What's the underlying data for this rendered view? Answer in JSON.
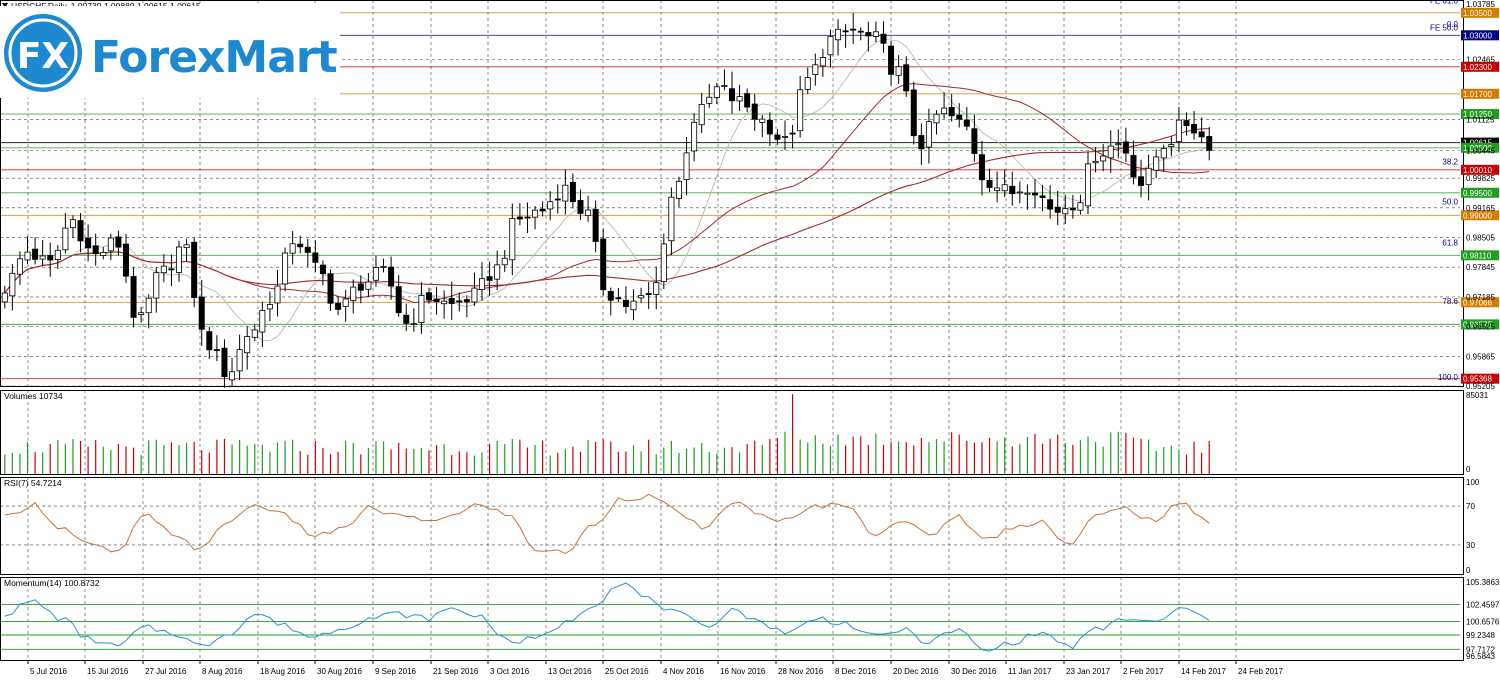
{
  "header": {
    "title": "USDCHF,Daily",
    "ohlc": "1.00730 1.00889 1.00615 1.00615"
  },
  "logo": {
    "text": "ForexMart",
    "badge": "FX",
    "brand_color": "#1e88d0"
  },
  "colors": {
    "bull": "#ffffff",
    "bear": "#000000",
    "ma_fast": "#b9b9b9",
    "ma_slow": "#a52a2a",
    "rsi_line": "#c8733a",
    "momentum_line": "#2b8fd0",
    "level_red": "#cc0000",
    "level_green": "#1f9e1f",
    "level_orange": "#d77a00",
    "level_blue": "#00008b"
  },
  "chart_data": [
    {
      "type": "candlestick",
      "pane": "price",
      "title": "USDCHF,Daily",
      "ylim": [
        0.95205,
        1.03785
      ],
      "yticks": [
        "1.03785",
        "1.02465",
        "1.01125",
        "1.00445",
        "0.99825",
        "0.99165",
        "0.98505",
        "0.97845",
        "0.97185",
        "0.96525",
        "0.95865",
        "0.95205"
      ],
      "x_labels": [
        "5 Jul 2016",
        "15 Jul 2016",
        "27 Jul 2016",
        "8 Aug 2016",
        "18 Aug 2016",
        "30 Aug 2016",
        "9 Sep 2016",
        "21 Sep 2016",
        "3 Oct 2016",
        "13 Oct 2016",
        "25 Oct 2016",
        "4 Nov 2016",
        "16 Nov 2016",
        "28 Nov 2016",
        "8 Dec 2016",
        "20 Dec 2016",
        "30 Dec 2016",
        "11 Jan 2017",
        "23 Jan 2017",
        "2 Feb 2017",
        "14 Feb 2017",
        "24 Feb 2017"
      ],
      "close_anchors": [
        0.974,
        0.982,
        0.979,
        0.989,
        0.981,
        0.984,
        0.966,
        0.977,
        0.983,
        0.962,
        0.955,
        0.964,
        0.972,
        0.985,
        0.978,
        0.969,
        0.975,
        0.977,
        0.966,
        0.972,
        0.97,
        0.972,
        0.978,
        0.989,
        0.991,
        0.996,
        0.991,
        0.973,
        0.97,
        0.972,
        0.995,
        1.012,
        1.018,
        1.015,
        1.011,
        1.006,
        1.02,
        1.029,
        1.031,
        1.029,
        1.022,
        1.006,
        1.013,
        1.01,
        0.998,
        0.995,
        0.997,
        0.991,
        0.993,
        1.004,
        1.006,
        0.997,
        1.006,
        1.0106,
        1.00615
      ],
      "levels": [
        {
          "label": "1.03500",
          "value": 1.035,
          "color": "#d77a00"
        },
        {
          "label": "1.03000",
          "value": 1.03,
          "color": "#00008b"
        },
        {
          "label": "1.02300",
          "value": 1.023,
          "color": "#cc0000"
        },
        {
          "label": "1.01700",
          "value": 1.017,
          "color": "#d77a00"
        },
        {
          "label": "1.01250",
          "value": 1.0125,
          "color": "#1f9e1f"
        },
        {
          "label": "1.00615",
          "value": 1.00615,
          "color": "#000000"
        },
        {
          "label": "1.00500",
          "value": 1.005,
          "color": "#1f9e1f"
        },
        {
          "label": "1.00010",
          "value": 1.0001,
          "color": "#cc0000"
        },
        {
          "label": "0.99500",
          "value": 0.995,
          "color": "#1f9e1f"
        },
        {
          "label": "0.99000",
          "value": 0.99,
          "color": "#d77a00"
        },
        {
          "label": "0.98110",
          "value": 0.9811,
          "color": "#1f9e1f"
        },
        {
          "label": "0.97066",
          "value": 0.97066,
          "color": "#d77a00"
        },
        {
          "label": "0.96575",
          "value": 0.96575,
          "color": "#1f9e1f"
        },
        {
          "label": "0.95368",
          "value": 0.95368,
          "color": "#cc0000"
        }
      ],
      "fib_labels": [
        {
          "label": "FE 61.8",
          "value": 1.0368
        },
        {
          "label": "0.0",
          "value": 1.0316
        },
        {
          "label": "FE 50.0",
          "value": 1.0308
        },
        {
          "label": "38.2",
          "value": 1.0011
        },
        {
          "label": "50.0",
          "value": 0.9922
        },
        {
          "label": "61.8",
          "value": 0.9831
        },
        {
          "label": "78.6",
          "value": 0.97
        },
        {
          "label": "100.0",
          "value": 0.9532
        }
      ]
    },
    {
      "type": "bar",
      "pane": "volumes",
      "title": "Volumes 10734",
      "ylim": [
        0,
        85031
      ],
      "yticks": [
        "85031",
        "0"
      ]
    },
    {
      "type": "line",
      "pane": "rsi",
      "title": "RSI(7) 54.7214",
      "ylim": [
        0,
        100
      ],
      "yticks": [
        "100",
        "70",
        "30",
        "0"
      ],
      "levels": [
        70,
        30
      ],
      "anchors": [
        58,
        72,
        48,
        30,
        22,
        60,
        42,
        25,
        55,
        72,
        60,
        40,
        45,
        68,
        60,
        55,
        60,
        72,
        60,
        25,
        22,
        50,
        78,
        80,
        65,
        45,
        75,
        60,
        55,
        70,
        72,
        42,
        55,
        40,
        60,
        35,
        48,
        55,
        30,
        60,
        68,
        55,
        72,
        55
      ]
    },
    {
      "type": "line",
      "pane": "momentum",
      "title": "Momentum(14) 100.8732",
      "ylim": [
        96.5843,
        105.3863
      ],
      "yticks": [
        "105.3863",
        "102.4597",
        "100.6576",
        "99.2348",
        "97.7172",
        "96.5843"
      ],
      "levels": [
        102.4597,
        100.6576,
        99.2348,
        97.7172
      ],
      "anchors": [
        101.5,
        102.8,
        101.0,
        98.8,
        98.0,
        100.0,
        99.5,
        98.0,
        99.5,
        101.5,
        100.2,
        99.0,
        100.0,
        101.0,
        101.5,
        101.0,
        102.0,
        101.2,
        98.5,
        98.8,
        100.5,
        102.5,
        104.8,
        103.0,
        101.5,
        100.0,
        102.0,
        100.5,
        99.5,
        101.0,
        100.5,
        99.0,
        99.8,
        98.5,
        99.8,
        97.5,
        98.5,
        99.5,
        98.0,
        99.8,
        101.0,
        100.5,
        102.0,
        101.0
      ]
    }
  ]
}
